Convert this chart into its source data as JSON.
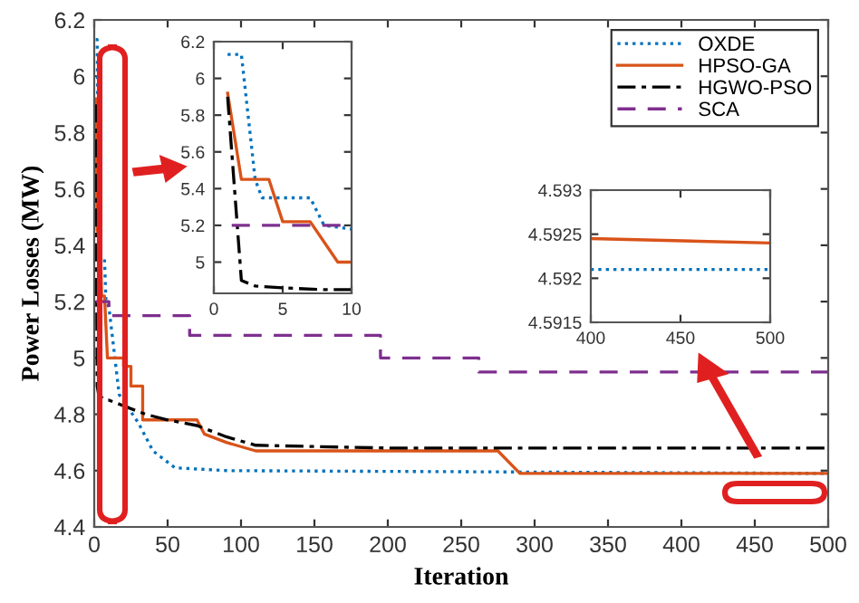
{
  "chart_data": [
    {
      "type": "line",
      "xlabel": "Iteration",
      "ylabel": "Power Losses (MW)",
      "xlim": [
        0,
        500
      ],
      "ylim": [
        4.4,
        6.2
      ],
      "xticks": [
        0,
        50,
        100,
        150,
        200,
        250,
        300,
        350,
        400,
        450,
        500
      ],
      "yticks": [
        4.4,
        4.6,
        4.8,
        5,
        5.2,
        5.4,
        5.6,
        5.8,
        6,
        6.2
      ],
      "legend": "top right",
      "grid": false,
      "series": [
        {
          "name": "OXDE",
          "color": "#0072bd",
          "line_style": "dotted",
          "x": [
            1,
            2,
            3,
            3.5,
            7,
            8,
            10,
            17,
            30,
            40,
            55,
            90,
            500
          ],
          "values": [
            6.13,
            6.13,
            5.45,
            5.35,
            5.35,
            5.2,
            5.18,
            4.87,
            4.77,
            4.67,
            4.61,
            4.6,
            4.59
          ]
        },
        {
          "name": "HPSO-GA",
          "color": "#d95319",
          "line_style": "solid",
          "x": [
            1,
            2,
            4,
            5,
            7,
            9,
            20,
            20,
            25,
            25,
            33,
            33,
            70,
            75,
            90,
            110,
            275,
            290,
            500
          ],
          "values": [
            5.92,
            5.45,
            5.45,
            5.22,
            5.22,
            5.0,
            5.0,
            4.97,
            4.97,
            4.9,
            4.9,
            4.78,
            4.78,
            4.73,
            4.7,
            4.67,
            4.67,
            4.59,
            4.59
          ]
        },
        {
          "name": "HGWO-PSO",
          "color": "#000000",
          "line_style": "dashdot",
          "x": [
            1,
            2,
            3,
            5,
            8,
            10,
            20,
            35,
            50,
            70,
            90,
            110,
            200,
            500
          ],
          "values": [
            5.9,
            4.9,
            4.87,
            4.86,
            4.85,
            4.85,
            4.83,
            4.8,
            4.78,
            4.76,
            4.72,
            4.69,
            4.68,
            4.68
          ]
        },
        {
          "name": "SCA",
          "color": "#7e2f8e",
          "line_style": "dashed",
          "x": [
            1.3,
            10,
            10,
            65,
            65,
            195,
            195,
            262,
            262,
            500
          ],
          "values": [
            5.2,
            5.2,
            5.15,
            5.15,
            5.08,
            5.08,
            5.0,
            5.0,
            4.95,
            4.95
          ]
        }
      ]
    },
    {
      "type": "line",
      "xlim": [
        0,
        10
      ],
      "ylim": [
        4.83,
        6.2
      ],
      "xticks": [
        0,
        5,
        10
      ],
      "yticks": [
        5,
        5.2,
        5.4,
        5.6,
        5.8,
        6,
        6.2
      ],
      "grid": false,
      "series": [
        {
          "color": "#0072bd",
          "line_style": "dotted",
          "x": [
            1,
            2,
            3,
            3.5,
            7,
            8,
            10
          ],
          "values": [
            6.13,
            6.13,
            5.45,
            5.35,
            5.35,
            5.2,
            5.18
          ]
        },
        {
          "color": "#d95319",
          "line_style": "solid",
          "x": [
            1,
            2,
            4,
            5,
            7,
            9,
            10
          ],
          "values": [
            5.92,
            5.45,
            5.45,
            5.22,
            5.22,
            5.0,
            5.0
          ]
        },
        {
          "color": "#000000",
          "line_style": "dashdot",
          "x": [
            1,
            2,
            3,
            5,
            8,
            10
          ],
          "values": [
            5.9,
            4.9,
            4.87,
            4.86,
            4.85,
            4.85
          ]
        },
        {
          "color": "#7e2f8e",
          "line_style": "dashed",
          "x": [
            1.3,
            10
          ],
          "values": [
            5.2,
            5.2
          ]
        }
      ]
    },
    {
      "type": "line",
      "xlim": [
        400,
        500
      ],
      "ylim": [
        4.5915,
        4.593
      ],
      "xticks": [
        400,
        450,
        500
      ],
      "yticks": [
        4.5915,
        4.592,
        4.5925,
        4.593
      ],
      "grid": false,
      "series": [
        {
          "color": "#d95319",
          "line_style": "solid",
          "x": [
            400,
            500
          ],
          "values": [
            4.59245,
            4.5924
          ]
        },
        {
          "color": "#0072bd",
          "line_style": "dotted",
          "x": [
            400,
            500
          ],
          "values": [
            4.5921,
            4.5921
          ]
        }
      ]
    }
  ]
}
